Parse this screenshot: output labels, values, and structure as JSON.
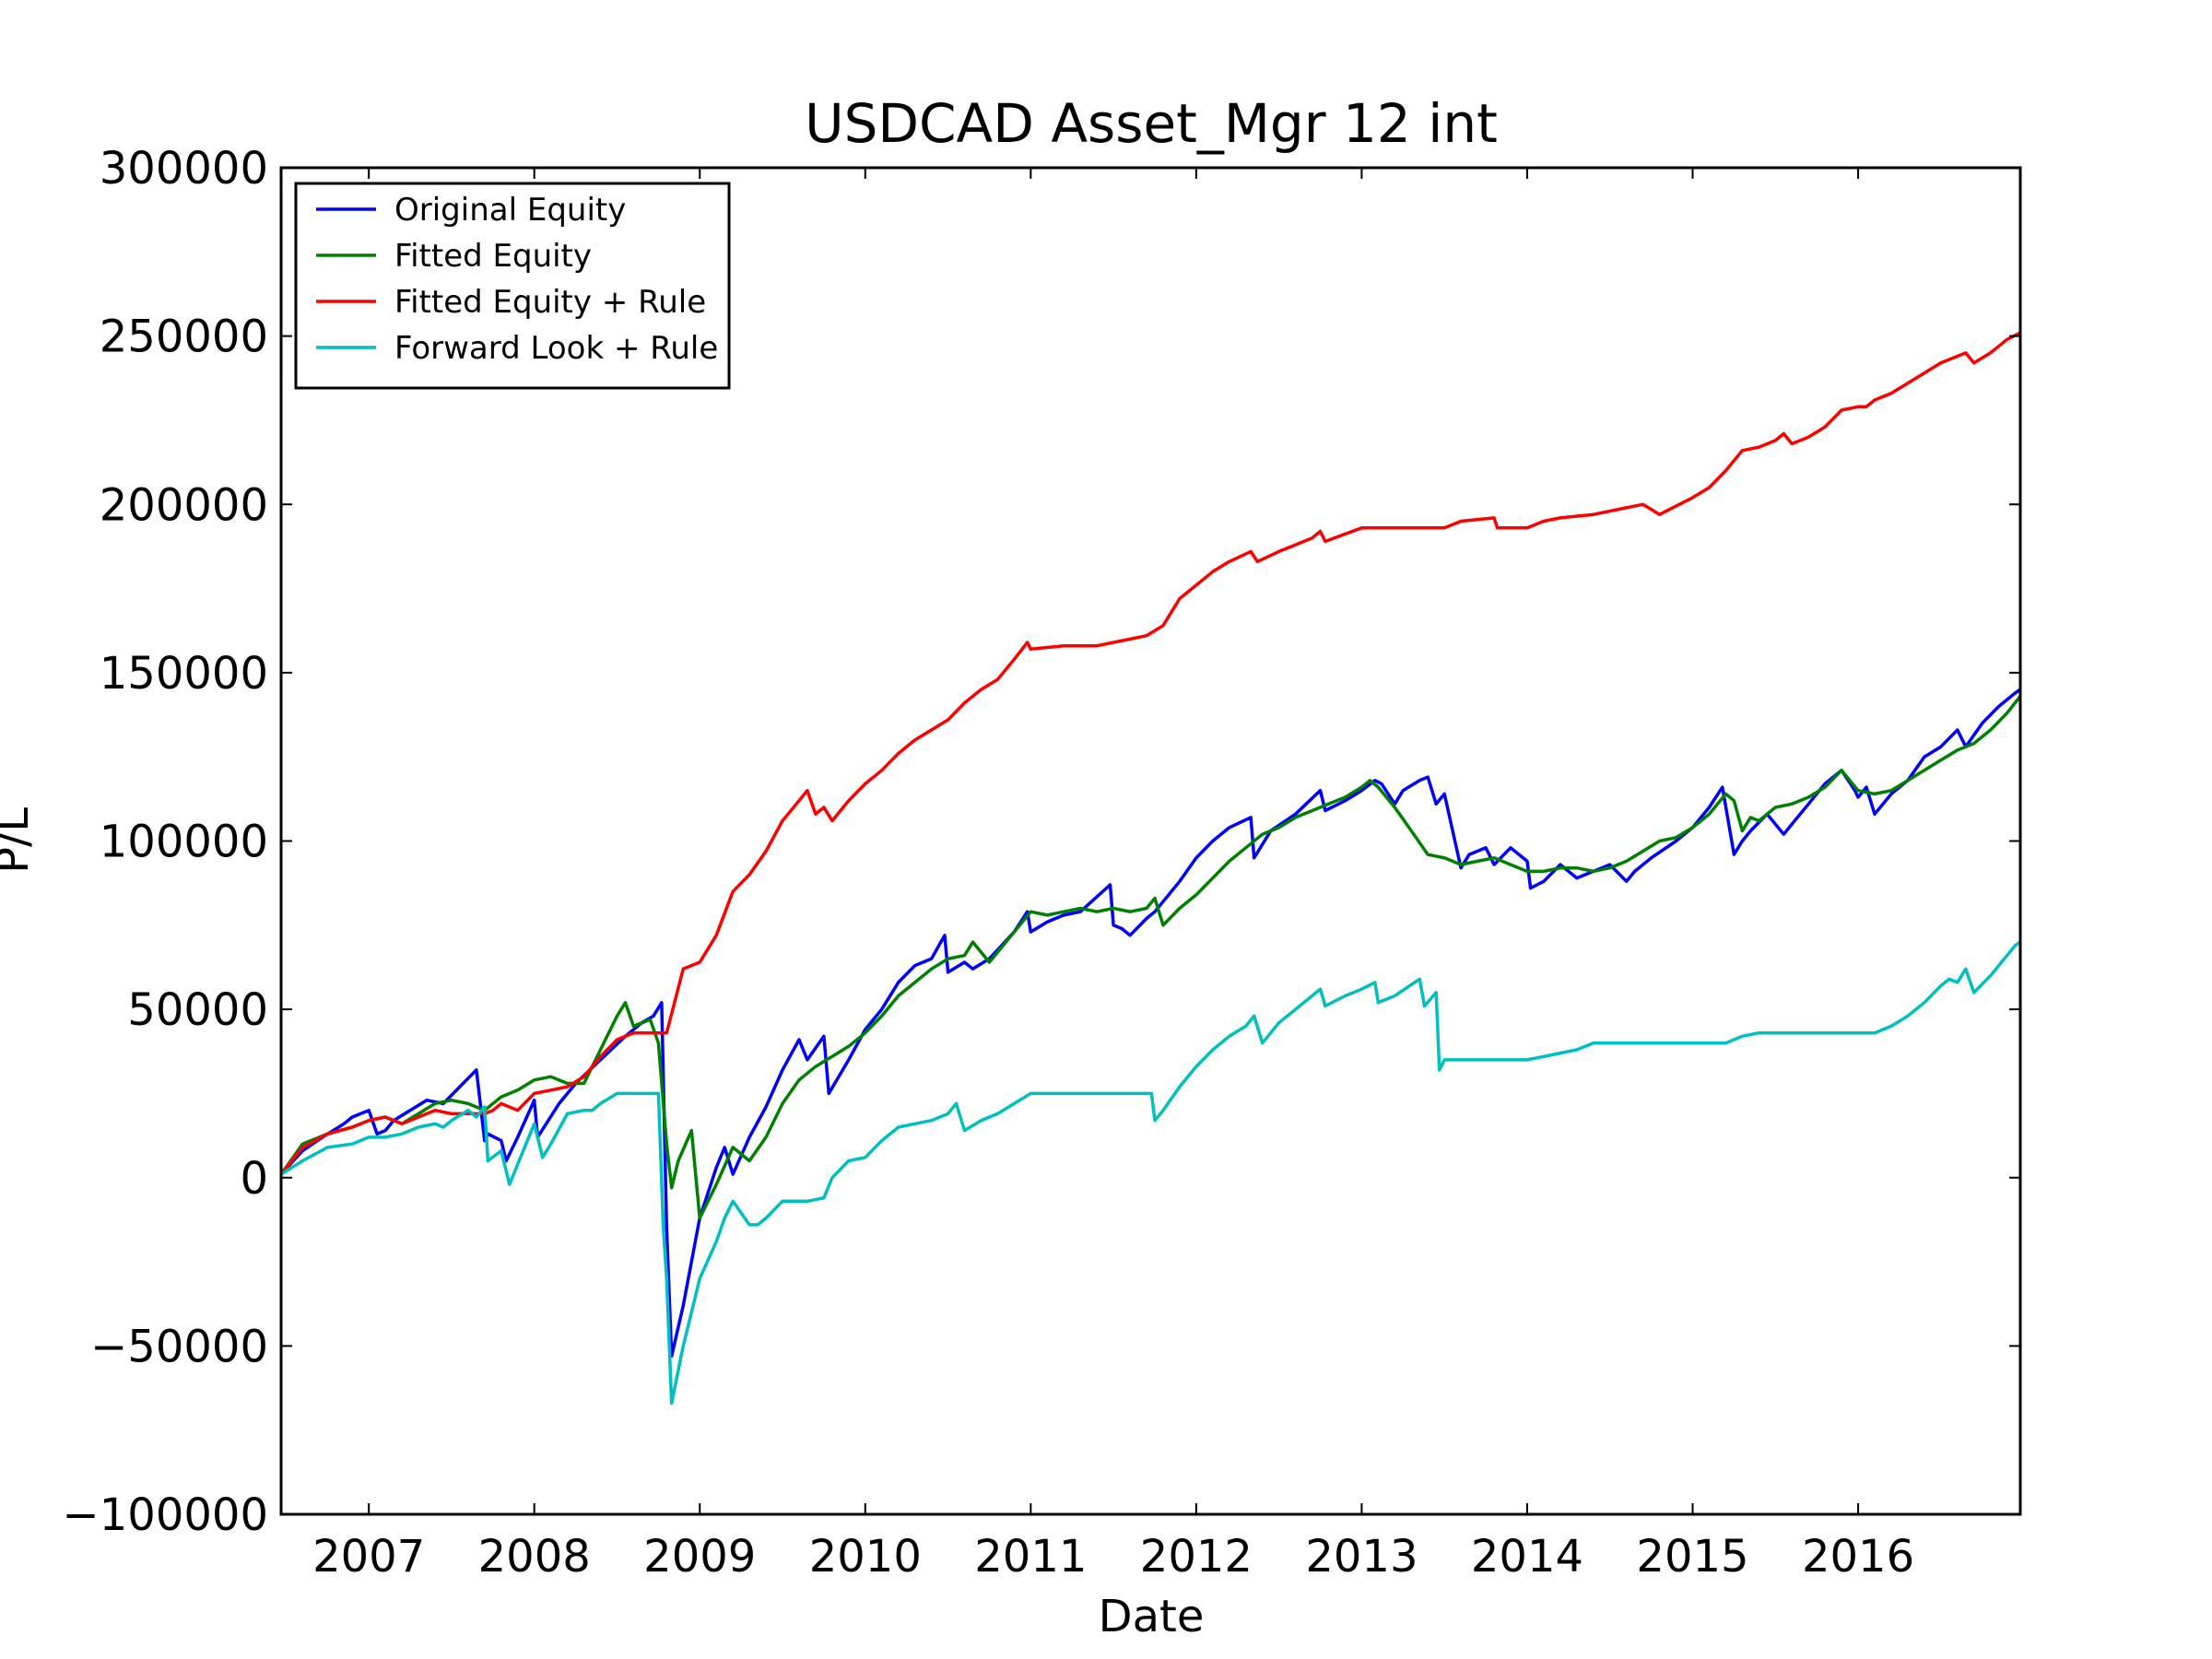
{
  "chart_data": {
    "type": "line",
    "title": "USDCAD Asset_Mgr 12 int",
    "xlabel": "Date",
    "ylabel": "P/L",
    "xlim": [
      2006.47,
      2016.98
    ],
    "ylim": [
      -100000,
      300000
    ],
    "x_ticks": [
      2007,
      2008,
      2009,
      2010,
      2011,
      2012,
      2013,
      2014,
      2015,
      2016
    ],
    "x_tick_labels": [
      "2007",
      "2008",
      "2009",
      "2010",
      "2011",
      "2012",
      "2013",
      "2014",
      "2015",
      "2016"
    ],
    "y_ticks": [
      -100000,
      -50000,
      0,
      50000,
      100000,
      150000,
      200000,
      250000,
      300000
    ],
    "y_tick_labels": [
      "−100000",
      "−50000",
      "0",
      "50000",
      "100000",
      "150000",
      "200000",
      "250000",
      "300000"
    ],
    "grid": false,
    "legend": "top-left",
    "series": [
      {
        "name": "Original Equity",
        "color": "#0000ff",
        "x": [
          2006.47,
          2006.6,
          2006.72,
          2006.85,
          2006.9,
          2007.0,
          2007.05,
          2007.1,
          2007.15,
          2007.25,
          2007.35,
          2007.45,
          2007.55,
          2007.65,
          2007.7,
          2007.72,
          2007.8,
          2007.83,
          2007.9,
          2008.0,
          2008.02,
          2008.15,
          2008.25,
          2008.4,
          2008.55,
          2008.65,
          2008.72,
          2008.77,
          2008.8,
          2008.83,
          2008.9,
          2009.0,
          2009.1,
          2009.15,
          2009.2,
          2009.3,
          2009.4,
          2009.5,
          2009.6,
          2009.65,
          2009.75,
          2009.78,
          2009.9,
          2010.0,
          2010.1,
          2010.2,
          2010.3,
          2010.4,
          2010.48,
          2010.5,
          2010.6,
          2010.65,
          2010.75,
          2010.9,
          2010.98,
          2011.0,
          2011.1,
          2011.2,
          2011.3,
          2011.48,
          2011.5,
          2011.55,
          2011.6,
          2011.7,
          2011.75,
          2011.8,
          2011.9,
          2012.0,
          2012.1,
          2012.2,
          2012.33,
          2012.35,
          2012.45,
          2012.6,
          2012.75,
          2012.78,
          2012.9,
          2013.0,
          2013.08,
          2013.12,
          2013.2,
          2013.25,
          2013.35,
          2013.4,
          2013.45,
          2013.5,
          2013.6,
          2013.65,
          2013.75,
          2013.8,
          2013.9,
          2014.0,
          2014.02,
          2014.1,
          2014.2,
          2014.3,
          2014.4,
          2014.5,
          2014.6,
          2014.65,
          2014.75,
          2014.9,
          2015.0,
          2015.1,
          2015.18,
          2015.25,
          2015.3,
          2015.35,
          2015.45,
          2015.55,
          2015.6,
          2015.7,
          2015.8,
          2015.9,
          2015.98,
          2016.0,
          2016.05,
          2016.1,
          2016.2,
          2016.3,
          2016.4,
          2016.5,
          2016.6,
          2016.65,
          2016.75,
          2016.85,
          2016.95,
          2016.98
        ],
        "y": [
          1000,
          8000,
          12000,
          16000,
          18000,
          20000,
          13000,
          14000,
          17000,
          20000,
          23000,
          22000,
          27000,
          32000,
          11000,
          13000,
          11000,
          5000,
          12000,
          23000,
          12000,
          22000,
          28000,
          35000,
          42000,
          46000,
          48000,
          52000,
          -15000,
          -53000,
          -38000,
          -12000,
          3000,
          9000,
          1000,
          12000,
          21000,
          32000,
          41000,
          35000,
          42000,
          25000,
          35000,
          44000,
          50000,
          58000,
          63000,
          65000,
          72000,
          61000,
          64000,
          62000,
          65000,
          73000,
          79000,
          73000,
          76000,
          78000,
          79000,
          87000,
          75000,
          74000,
          72000,
          77000,
          79000,
          82000,
          88000,
          95000,
          100000,
          104000,
          107000,
          95000,
          103000,
          108000,
          115000,
          109000,
          112000,
          115000,
          118000,
          117000,
          111000,
          115000,
          118000,
          119000,
          111000,
          114000,
          92000,
          96000,
          98000,
          93000,
          98000,
          94000,
          86000,
          88000,
          93000,
          89000,
          91000,
          93000,
          88000,
          91000,
          95000,
          100000,
          104000,
          110000,
          116000,
          96000,
          100000,
          103000,
          108000,
          102000,
          105000,
          111000,
          117000,
          121000,
          115000,
          113000,
          116000,
          108000,
          114000,
          118000,
          125000,
          128000,
          133000,
          128000,
          135000,
          140000,
          144000,
          145000
        ]
      },
      {
        "name": "Fitted Equity",
        "color": "#008000",
        "x": [
          2006.47,
          2006.6,
          2006.75,
          2006.9,
          2007.0,
          2007.1,
          2007.2,
          2007.3,
          2007.4,
          2007.5,
          2007.6,
          2007.7,
          2007.8,
          2007.9,
          2008.0,
          2008.1,
          2008.2,
          2008.3,
          2008.4,
          2008.5,
          2008.55,
          2008.6,
          2008.7,
          2008.75,
          2008.8,
          2008.83,
          2008.87,
          2008.95,
          2009.0,
          2009.1,
          2009.2,
          2009.3,
          2009.4,
          2009.5,
          2009.6,
          2009.7,
          2009.8,
          2009.9,
          2010.0,
          2010.1,
          2010.2,
          2010.3,
          2010.4,
          2010.5,
          2010.6,
          2010.65,
          2010.75,
          2010.85,
          2010.95,
          2011.0,
          2011.1,
          2011.2,
          2011.3,
          2011.4,
          2011.5,
          2011.6,
          2011.7,
          2011.75,
          2011.8,
          2011.9,
          2012.0,
          2012.1,
          2012.2,
          2012.3,
          2012.4,
          2012.5,
          2012.6,
          2012.7,
          2012.8,
          2012.9,
          2013.0,
          2013.05,
          2013.1,
          2013.2,
          2013.3,
          2013.4,
          2013.5,
          2013.6,
          2013.7,
          2013.8,
          2013.9,
          2014.0,
          2014.1,
          2014.2,
          2014.3,
          2014.4,
          2014.5,
          2014.6,
          2014.7,
          2014.8,
          2014.9,
          2015.0,
          2015.1,
          2015.2,
          2015.25,
          2015.3,
          2015.35,
          2015.4,
          2015.5,
          2015.6,
          2015.7,
          2015.8,
          2015.9,
          2016.0,
          2016.1,
          2016.2,
          2016.3,
          2016.4,
          2016.5,
          2016.6,
          2016.7,
          2016.8,
          2016.9,
          2016.98
        ],
        "y": [
          1000,
          10000,
          13000,
          15000,
          17000,
          18000,
          16000,
          19000,
          22000,
          23000,
          22000,
          20000,
          24000,
          26000,
          29000,
          30000,
          28000,
          28000,
          38000,
          48000,
          52000,
          45000,
          47000,
          40000,
          10000,
          -3000,
          5000,
          14000,
          -12000,
          -2000,
          9000,
          5000,
          12000,
          22000,
          29000,
          33000,
          36000,
          39000,
          43000,
          48000,
          54000,
          58000,
          62000,
          65000,
          66000,
          70000,
          64000,
          70000,
          76000,
          79000,
          78000,
          79000,
          80000,
          79000,
          80000,
          79000,
          80000,
          83000,
          75000,
          80000,
          84000,
          89000,
          94000,
          98000,
          102000,
          104000,
          107000,
          109000,
          111000,
          113000,
          116000,
          118000,
          116000,
          110000,
          103000,
          96000,
          95000,
          93000,
          94000,
          95000,
          93000,
          91000,
          91000,
          92000,
          92000,
          91000,
          92000,
          94000,
          97000,
          100000,
          101000,
          104000,
          108000,
          114000,
          112000,
          103000,
          107000,
          106000,
          110000,
          111000,
          113000,
          116000,
          121000,
          115000,
          114000,
          115000,
          118000,
          121000,
          124000,
          127000,
          129000,
          133000,
          138000,
          143000
        ]
      },
      {
        "name": "Fitted Equity + Rule",
        "color": "#ff0000",
        "x": [
          2006.47,
          2006.6,
          2006.75,
          2006.9,
          2007.0,
          2007.1,
          2007.2,
          2007.3,
          2007.4,
          2007.5,
          2007.6,
          2007.7,
          2007.75,
          2007.8,
          2007.9,
          2008.0,
          2008.1,
          2008.2,
          2008.3,
          2008.4,
          2008.5,
          2008.6,
          2008.7,
          2008.8,
          2008.9,
          2009.0,
          2009.05,
          2009.1,
          2009.2,
          2009.3,
          2009.4,
          2009.5,
          2009.6,
          2009.65,
          2009.7,
          2009.75,
          2009.8,
          2009.9,
          2010.0,
          2010.1,
          2010.2,
          2010.3,
          2010.4,
          2010.5,
          2010.6,
          2010.7,
          2010.8,
          2010.9,
          2010.98,
          2011.0,
          2011.2,
          2011.4,
          2011.6,
          2011.7,
          2011.8,
          2011.9,
          2012.0,
          2012.1,
          2012.2,
          2012.33,
          2012.37,
          2012.5,
          2012.7,
          2012.75,
          2012.78,
          2013.0,
          2013.2,
          2013.4,
          2013.5,
          2013.6,
          2013.8,
          2013.82,
          2014.0,
          2014.1,
          2014.2,
          2014.4,
          2014.6,
          2014.7,
          2014.8,
          2015.0,
          2015.1,
          2015.2,
          2015.3,
          2015.4,
          2015.5,
          2015.55,
          2015.6,
          2015.7,
          2015.8,
          2015.9,
          2016.0,
          2016.05,
          2016.1,
          2016.2,
          2016.3,
          2016.4,
          2016.5,
          2016.6,
          2016.65,
          2016.7,
          2016.8,
          2016.9,
          2016.98
        ],
        "y": [
          1000,
          9000,
          13000,
          15000,
          17000,
          18000,
          16000,
          18000,
          20000,
          19000,
          19000,
          19000,
          20000,
          22000,
          20000,
          25000,
          26000,
          27000,
          30000,
          36000,
          41000,
          43000,
          43000,
          43000,
          62000,
          64000,
          68000,
          72000,
          85000,
          90000,
          97000,
          106000,
          112000,
          115000,
          108000,
          110000,
          106000,
          112000,
          117000,
          121000,
          126000,
          130000,
          133000,
          136000,
          141000,
          145000,
          148000,
          154000,
          159000,
          157000,
          158000,
          158000,
          160000,
          161000,
          164000,
          172000,
          176000,
          180000,
          183000,
          186000,
          183000,
          186000,
          190000,
          192000,
          189000,
          193000,
          193000,
          193000,
          193000,
          195000,
          196000,
          193000,
          193000,
          195000,
          196000,
          197000,
          199000,
          200000,
          197000,
          202000,
          205000,
          210000,
          216000,
          217000,
          219000,
          221000,
          218000,
          220000,
          223000,
          228000,
          229000,
          229000,
          231000,
          233000,
          236000,
          239000,
          242000,
          244000,
          245000,
          242000,
          245000,
          249000,
          251000
        ]
      },
      {
        "name": "Forward Look + Rule",
        "color": "#00bfbf",
        "x": [
          2006.47,
          2006.6,
          2006.75,
          2006.9,
          2007.0,
          2007.1,
          2007.2,
          2007.3,
          2007.4,
          2007.45,
          2007.5,
          2007.6,
          2007.65,
          2007.7,
          2007.72,
          2007.8,
          2007.85,
          2007.9,
          2008.0,
          2008.05,
          2008.1,
          2008.2,
          2008.3,
          2008.35,
          2008.4,
          2008.5,
          2008.6,
          2008.7,
          2008.75,
          2008.78,
          2008.8,
          2008.83,
          2008.9,
          2009.0,
          2009.1,
          2009.15,
          2009.2,
          2009.3,
          2009.35,
          2009.4,
          2009.5,
          2009.6,
          2009.65,
          2009.75,
          2009.8,
          2009.9,
          2010.0,
          2010.1,
          2010.2,
          2010.3,
          2010.4,
          2010.5,
          2010.55,
          2010.6,
          2010.7,
          2010.8,
          2010.9,
          2011.0,
          2011.2,
          2011.4,
          2011.6,
          2011.73,
          2011.75,
          2011.8,
          2011.9,
          2012.0,
          2012.1,
          2012.2,
          2012.3,
          2012.35,
          2012.4,
          2012.5,
          2012.6,
          2012.75,
          2012.78,
          2012.9,
          2013.0,
          2013.08,
          2013.1,
          2013.2,
          2013.35,
          2013.38,
          2013.45,
          2013.47,
          2013.5,
          2013.6,
          2013.8,
          2014.0,
          2014.1,
          2014.2,
          2014.3,
          2014.4,
          2014.6,
          2014.8,
          2015.0,
          2015.2,
          2015.3,
          2015.4,
          2015.6,
          2015.8,
          2016.0,
          2016.1,
          2016.2,
          2016.3,
          2016.4,
          2016.5,
          2016.55,
          2016.6,
          2016.65,
          2016.7,
          2016.8,
          2016.9,
          2016.95,
          2016.98
        ],
        "y": [
          1000,
          5000,
          9000,
          10000,
          12000,
          12000,
          13000,
          15000,
          16000,
          15000,
          17000,
          20000,
          18000,
          21000,
          5000,
          8000,
          -2000,
          4000,
          16000,
          6000,
          10000,
          19000,
          20000,
          20000,
          22000,
          25000,
          25000,
          25000,
          25000,
          -15000,
          -30000,
          -67000,
          -50000,
          -30000,
          -19000,
          -12000,
          -7000,
          -14000,
          -14000,
          -12000,
          -7000,
          -7000,
          -7000,
          -6000,
          0,
          5000,
          6000,
          11000,
          15000,
          16000,
          17000,
          19000,
          22000,
          14000,
          17000,
          19000,
          22000,
          25000,
          25000,
          25000,
          25000,
          25000,
          17000,
          20000,
          27000,
          33000,
          38000,
          42000,
          45000,
          48000,
          40000,
          46000,
          50000,
          56000,
          51000,
          54000,
          56000,
          58000,
          52000,
          54000,
          59000,
          51000,
          55000,
          32000,
          35000,
          35000,
          35000,
          35000,
          36000,
          37000,
          38000,
          40000,
          40000,
          40000,
          40000,
          40000,
          42000,
          43000,
          43000,
          43000,
          43000,
          43000,
          45000,
          48000,
          52000,
          57000,
          59000,
          58000,
          62000,
          55000,
          60000,
          66000,
          69000,
          70000
        ]
      }
    ]
  }
}
